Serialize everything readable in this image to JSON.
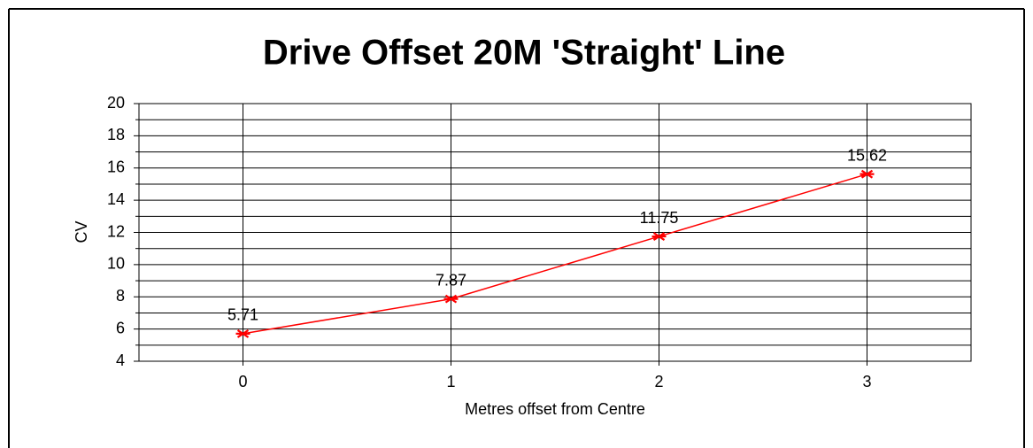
{
  "chart_data": {
    "type": "line",
    "title": "Drive Offset 20M 'Straight' Line",
    "x_label": "Metres offset from Centre",
    "y_label": "CV",
    "x": [
      0,
      1,
      2,
      3
    ],
    "series": [
      {
        "color": "#ff0000",
        "values": [
          5.71,
          7.87,
          11.75,
          15.62
        ]
      }
    ],
    "xlim": [
      -0.5,
      3.5
    ],
    "xticks": [
      0,
      1,
      2,
      3
    ],
    "ylim": [
      4,
      20
    ],
    "yticks": [
      4,
      6,
      8,
      10,
      12,
      14,
      16,
      18,
      20
    ],
    "y_minor_ticks": [
      5,
      7,
      9,
      11,
      13,
      15,
      17,
      19
    ],
    "grid": true,
    "data_labels": true
  }
}
